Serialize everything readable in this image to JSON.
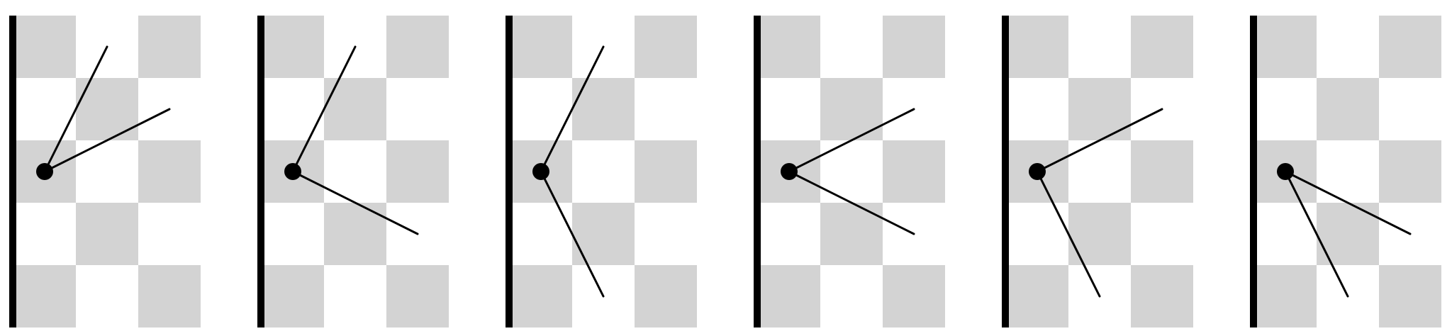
{
  "colors": {
    "background": "#ffffff",
    "checker": "#d3d3d3",
    "ink": "#000000"
  },
  "board": {
    "rows": 5,
    "cols": 3,
    "filled_cell_parity": "even"
  },
  "panels": [
    {
      "lines": [
        {
          "to_col": 1.5,
          "to_row": 0.5
        },
        {
          "to_col": 2.5,
          "to_row": 1.5
        }
      ]
    },
    {
      "lines": [
        {
          "to_col": 1.5,
          "to_row": 0.5
        },
        {
          "to_col": 2.5,
          "to_row": 3.5
        }
      ]
    },
    {
      "lines": [
        {
          "to_col": 1.5,
          "to_row": 0.5
        },
        {
          "to_col": 1.5,
          "to_row": 4.5
        }
      ]
    },
    {
      "lines": [
        {
          "to_col": 2.5,
          "to_row": 1.5
        },
        {
          "to_col": 2.5,
          "to_row": 3.5
        }
      ]
    },
    {
      "lines": [
        {
          "to_col": 2.5,
          "to_row": 1.5
        },
        {
          "to_col": 1.5,
          "to_row": 4.5
        }
      ]
    },
    {
      "lines": [
        {
          "to_col": 2.5,
          "to_row": 3.5
        },
        {
          "to_col": 1.5,
          "to_row": 4.5
        }
      ]
    }
  ],
  "pivot": {
    "col": 0.5,
    "row": 2.5
  }
}
